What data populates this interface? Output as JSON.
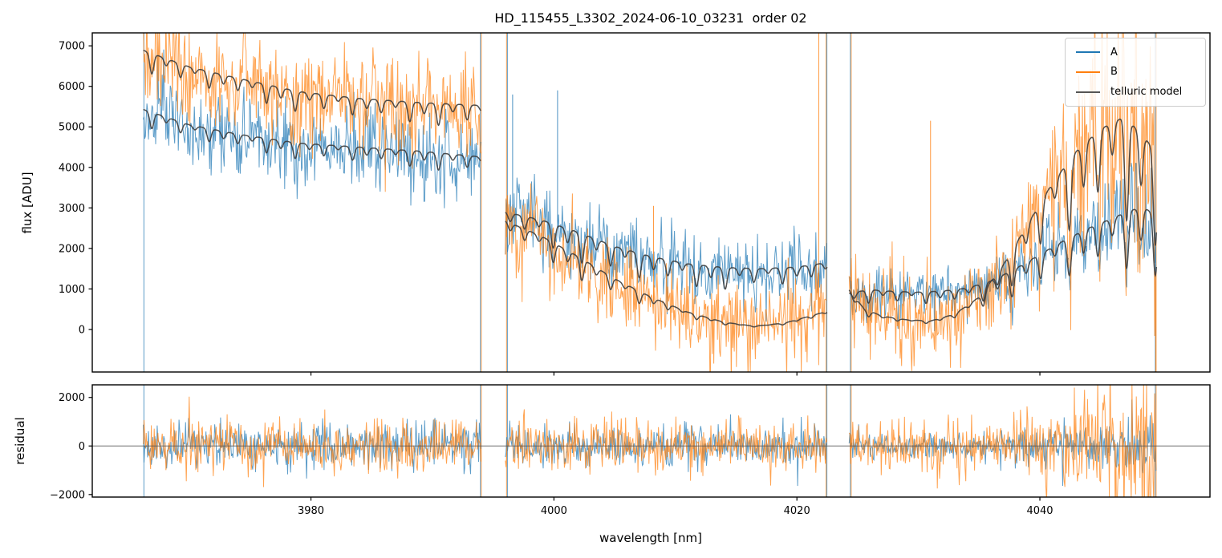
{
  "chart_data": {
    "type": "line",
    "title": "HD_115455_L3302_2024-06-10_03231  order 02",
    "xlabel": "wavelength [nm]",
    "xlim": [
      3962.0,
      4054.0
    ],
    "x_ticks": [
      3980,
      4000,
      4020,
      4040
    ],
    "panels": [
      {
        "id": "flux",
        "ylabel": "flux [ADU]",
        "ylim": [
          -1050,
          7320
        ],
        "y_ticks": [
          0,
          1000,
          2000,
          3000,
          4000,
          5000,
          6000,
          7000
        ],
        "grid": false
      },
      {
        "id": "residual",
        "ylabel": "residual",
        "ylim": [
          -2105,
          2520
        ],
        "y_ticks": [
          -2000,
          0,
          2000
        ],
        "zero_line": true,
        "zero_line_color": "#555555"
      }
    ],
    "legend": {
      "position": "upper right",
      "entries": [
        {
          "label": "A",
          "color": "#1f77b4"
        },
        {
          "label": "B",
          "color": "#ff7f0e"
        },
        {
          "label": "telluric model",
          "color": "#555555"
        }
      ]
    },
    "series_style": {
      "A": {
        "color": "#1f77b4",
        "alpha": 0.72
      },
      "B": {
        "color": "#ff7f0e",
        "alpha": 0.72
      },
      "telluric": {
        "color": "#3d3d3d",
        "alpha": 0.9
      }
    },
    "frame_color": "#000000",
    "sample_step": 0.06,
    "noise_seed": 20240610,
    "segments": [
      {
        "x_range": [
          3966.2,
          3994.0
        ],
        "telluric_A": [
          [
            3966.2,
            5430
          ],
          [
            3970,
            5050
          ],
          [
            3974,
            4820
          ],
          [
            3979,
            4600
          ],
          [
            3984,
            4500
          ],
          [
            3989,
            4400
          ],
          [
            3994,
            4260
          ]
        ],
        "telluric_B": [
          [
            3966.2,
            6890
          ],
          [
            3970,
            6480
          ],
          [
            3974,
            6200
          ],
          [
            3979,
            5870
          ],
          [
            3984,
            5700
          ],
          [
            3989,
            5600
          ],
          [
            3994,
            5530
          ]
        ],
        "noise_A": 500,
        "noise_B": 620,
        "res_noise_A": 480,
        "res_noise_B": 560
      },
      {
        "x_range": [
          3996.0,
          4022.5
        ],
        "telluric_A": [
          [
            3996,
            2900
          ],
          [
            3999,
            2700
          ],
          [
            4002,
            2400
          ],
          [
            4005,
            2050
          ],
          [
            4008,
            1800
          ],
          [
            4011,
            1620
          ],
          [
            4014,
            1530
          ],
          [
            4017,
            1500
          ],
          [
            4020,
            1540
          ],
          [
            4022.5,
            1650
          ]
        ],
        "telluric_B": [
          [
            3996,
            2680
          ],
          [
            3999,
            2300
          ],
          [
            4002,
            1800
          ],
          [
            4005,
            1250
          ],
          [
            4008,
            800
          ],
          [
            4011,
            430
          ],
          [
            4014,
            180
          ],
          [
            4016.5,
            80
          ],
          [
            4019,
            160
          ],
          [
            4022.5,
            450
          ]
        ],
        "noise_A": 450,
        "noise_B": 520,
        "res_noise_A": 430,
        "res_noise_B": 520
      },
      {
        "x_range": [
          4024.3,
          4049.6
        ],
        "telluric_A": [
          [
            4024.3,
            900
          ],
          [
            4026,
            980
          ],
          [
            4028,
            940
          ],
          [
            4030,
            920
          ],
          [
            4032,
            950
          ],
          [
            4034,
            1020
          ],
          [
            4036,
            1200
          ],
          [
            4038,
            1500
          ],
          [
            4040,
            1850
          ],
          [
            4042,
            2200
          ],
          [
            4044,
            2500
          ],
          [
            4046,
            2750
          ],
          [
            4047.5,
            2950
          ],
          [
            4048.6,
            3000
          ],
          [
            4049.6,
            2820
          ]
        ],
        "telluric_B": [
          [
            4024.3,
            980
          ],
          [
            4025.5,
            520
          ],
          [
            4027,
            330
          ],
          [
            4029,
            240
          ],
          [
            4031,
            210
          ],
          [
            4033,
            380
          ],
          [
            4035,
            800
          ],
          [
            4037,
            1600
          ],
          [
            4039,
            2600
          ],
          [
            4041,
            3600
          ],
          [
            4043,
            4400
          ],
          [
            4045,
            4950
          ],
          [
            4046.8,
            5230
          ],
          [
            4048,
            4950
          ],
          [
            4049.6,
            4380
          ]
        ],
        "noise_A": 300,
        "noise_B": 550,
        "res_noise_A": 290,
        "res_noise_B": 540,
        "noise_ramp": {
          "from": 4036,
          "A_end": 720,
          "B_end": 2100
        },
        "res_ramp": {
          "from": 4036,
          "A_end": 680,
          "B_end": 2050
        }
      }
    ],
    "dips": {
      "start": 3966.9,
      "spacing": 1.18,
      "width": 0.16,
      "depth_cycle": [
        1.0,
        0.35,
        0.68,
        0.25,
        0.82,
        0.45,
        0.6,
        0.3,
        0.92,
        0.5
      ],
      "depth_envelope": [
        [
          3962,
          0.07
        ],
        [
          3994,
          0.1
        ],
        [
          3996,
          0.15
        ],
        [
          4006,
          0.4
        ],
        [
          4014,
          0.35
        ],
        [
          4022,
          0.3
        ],
        [
          4024,
          0.32
        ],
        [
          4034,
          0.4
        ],
        [
          4042,
          0.5
        ],
        [
          4054,
          0.55
        ]
      ]
    },
    "edge_spikes": [
      {
        "x": 3966.25,
        "series": [
          "A"
        ]
      },
      {
        "x": 3993.95,
        "series": [
          "A",
          "B"
        ]
      },
      {
        "x": 3996.1,
        "series": [
          "B",
          "A"
        ]
      },
      {
        "x": 4022.4,
        "series": [
          "B",
          "A"
        ]
      },
      {
        "x": 4024.4,
        "series": [
          "A",
          "B"
        ]
      },
      {
        "x": 4049.5,
        "series": [
          "A",
          "B"
        ]
      }
    ],
    "spikes_flux": [
      {
        "series": "A",
        "x": 3996.6,
        "y_base": 2900,
        "y_top": 5800
      },
      {
        "series": "A",
        "x": 4000.3,
        "y_base": 2500,
        "y_top": 5900
      },
      {
        "series": "B",
        "x": 4008.2,
        "y_base": 700,
        "y_top": 3050
      },
      {
        "series": "B",
        "x": 4021.8,
        "y_base": 400,
        "y_top": 7320
      },
      {
        "series": "B",
        "x": 4031.0,
        "y_base": 200,
        "y_top": 5150
      }
    ]
  }
}
